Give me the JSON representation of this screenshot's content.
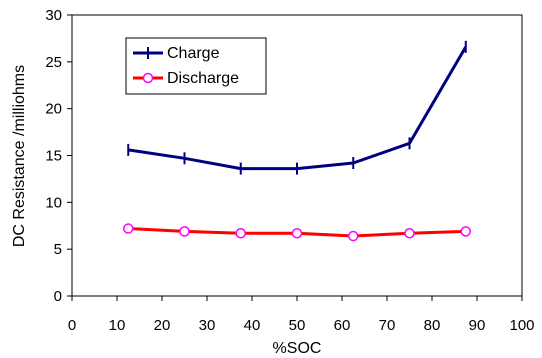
{
  "chart_data": {
    "type": "line",
    "xlabel": "%SOC",
    "ylabel": "DC Resistance /milliohms",
    "xlim": [
      0,
      100
    ],
    "ylim": [
      0,
      30
    ],
    "x_ticks": [
      "0",
      "10",
      "20",
      "30",
      "40",
      "50",
      "60",
      "70",
      "80",
      "90",
      "100"
    ],
    "y_ticks": [
      "0",
      "5",
      "10",
      "15",
      "20",
      "25",
      "30"
    ],
    "grid": false,
    "legend_position": "top-left",
    "series": [
      {
        "name": "Charge",
        "color": "#000080",
        "marker": "plus",
        "x": [
          12.5,
          25,
          37.5,
          50,
          62.5,
          75,
          87.5
        ],
        "y": [
          15.6,
          14.7,
          13.6,
          13.6,
          14.2,
          16.3,
          26.6
        ]
      },
      {
        "name": "Discharge",
        "color": "#ff0000",
        "marker_color": "#ff00ff",
        "marker": "circle",
        "x": [
          12.5,
          25,
          37.5,
          50,
          62.5,
          75,
          87.5
        ],
        "y": [
          7.2,
          6.9,
          6.7,
          6.7,
          6.4,
          6.7,
          6.9
        ]
      }
    ]
  }
}
